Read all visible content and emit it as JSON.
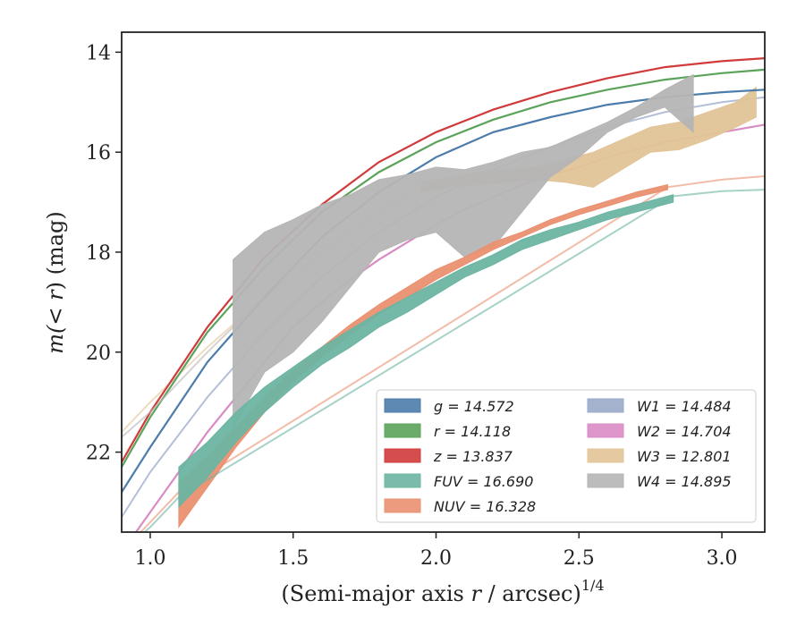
{
  "chart_data": {
    "type": "line",
    "title": "",
    "xlabel": "(Semi-major axis r / arcsec)^1/4",
    "xlabel_parts": {
      "main": "(Semi-major axis ",
      "var": "r",
      "tail": " / arcsec)",
      "sup": "1/4"
    },
    "ylabel": "m(<r) (mag)",
    "ylabel_parts": {
      "open": "m(",
      "var": "< r",
      "close": ") (mag)"
    },
    "xlim": [
      0.9,
      3.15
    ],
    "ylim": [
      23.6,
      13.6
    ],
    "y_inverted": true,
    "xticks": [
      "1.0",
      "1.5",
      "2.0",
      "2.5",
      "3.0"
    ],
    "xtick_values": [
      1.0,
      1.5,
      2.0,
      2.5,
      3.0
    ],
    "yticks": [
      "14",
      "16",
      "18",
      "20",
      "22"
    ],
    "ytick_values": [
      14,
      16,
      18,
      20,
      22
    ],
    "grid": false,
    "legend_position": "lower-right",
    "legend_columns": 2,
    "series": [
      {
        "name": "g = 14.572",
        "color": "#4c7cab",
        "style": "line",
        "x": [
          0.9,
          1.0,
          1.2,
          1.4,
          1.6,
          1.8,
          2.0,
          2.2,
          2.4,
          2.6,
          2.8,
          3.0,
          3.15
        ],
        "y": [
          22.8,
          21.9,
          20.2,
          18.9,
          17.7,
          16.8,
          16.1,
          15.6,
          15.3,
          15.05,
          14.9,
          14.8,
          14.75
        ]
      },
      {
        "name": "r = 14.118",
        "color": "#5ba35b",
        "style": "line",
        "x": [
          0.9,
          1.0,
          1.2,
          1.4,
          1.6,
          1.8,
          2.0,
          2.2,
          2.4,
          2.6,
          2.8,
          3.0,
          3.15
        ],
        "y": [
          22.3,
          21.3,
          19.6,
          18.3,
          17.2,
          16.4,
          15.8,
          15.35,
          15.0,
          14.75,
          14.55,
          14.42,
          14.35
        ]
      },
      {
        "name": "z = 13.837",
        "color": "#d13a3a",
        "style": "line",
        "x": [
          0.9,
          1.0,
          1.2,
          1.4,
          1.6,
          1.8,
          2.0,
          2.2,
          2.4,
          2.6,
          2.8,
          3.0,
          3.15
        ],
        "y": [
          22.2,
          21.2,
          19.5,
          18.1,
          17.05,
          16.2,
          15.6,
          15.15,
          14.8,
          14.52,
          14.3,
          14.18,
          14.12
        ]
      },
      {
        "name": "FUV = 16.690",
        "color": "#6db4a2",
        "style": "band",
        "x": [
          1.1,
          1.2,
          1.3,
          1.4,
          1.5,
          1.6,
          1.7,
          1.8,
          1.9,
          2.0,
          2.1,
          2.2,
          2.3,
          2.4,
          2.5,
          2.6,
          2.7,
          2.83
        ],
        "y_upper": [
          22.3,
          21.8,
          21.2,
          20.7,
          20.3,
          19.9,
          19.55,
          19.2,
          18.9,
          18.6,
          18.3,
          18.05,
          17.75,
          17.55,
          17.4,
          17.2,
          17.05,
          16.85
        ],
        "y_lower": [
          23.1,
          22.5,
          21.8,
          21.2,
          20.7,
          20.25,
          19.9,
          19.5,
          19.2,
          18.85,
          18.5,
          18.25,
          17.95,
          17.75,
          17.55,
          17.35,
          17.2,
          17.0
        ],
        "ext_x": [
          0.9,
          1.0,
          1.1,
          2.83,
          3.0,
          3.15
        ],
        "ext_y": [
          24.0,
          23.5,
          22.9,
          16.88,
          16.78,
          16.75
        ]
      },
      {
        "name": "NUV = 16.328",
        "color": "#ea9070",
        "style": "band",
        "x": [
          1.1,
          1.2,
          1.3,
          1.4,
          1.5,
          1.6,
          1.7,
          1.8,
          1.9,
          2.0,
          2.1,
          2.2,
          2.3,
          2.4,
          2.5,
          2.6,
          2.7,
          2.81
        ],
        "y_upper": [
          22.6,
          22.1,
          21.5,
          20.9,
          20.35,
          19.9,
          19.45,
          19.05,
          18.7,
          18.35,
          18.1,
          17.8,
          17.6,
          17.35,
          17.15,
          16.98,
          16.8,
          16.65
        ],
        "y_lower": [
          23.5,
          22.7,
          21.9,
          21.2,
          20.6,
          20.1,
          19.65,
          19.25,
          18.9,
          18.55,
          18.25,
          17.95,
          17.7,
          17.45,
          17.25,
          17.08,
          16.9,
          16.75
        ],
        "ext_x": [
          0.9,
          1.0,
          1.1,
          2.81,
          3.0,
          3.15
        ],
        "ext_y": [
          24.0,
          23.4,
          22.8,
          16.7,
          16.55,
          16.48
        ]
      },
      {
        "name": "W1 = 14.484",
        "color": "#9aaac9",
        "style": "faint",
        "x": [
          0.9,
          1.0,
          1.2,
          1.4,
          1.6,
          1.8,
          2.0,
          2.2,
          2.4,
          2.6,
          2.8,
          3.0,
          3.15
        ],
        "y": [
          23.3,
          22.4,
          20.9,
          19.6,
          18.5,
          17.6,
          16.9,
          16.35,
          15.9,
          15.5,
          15.2,
          15.0,
          14.9
        ]
      },
      {
        "name": "W2 = 14.704",
        "color": "#d98bc4",
        "style": "line",
        "x": [
          0.9,
          1.0,
          1.1,
          1.2,
          1.3,
          1.4,
          1.5,
          1.6,
          1.7,
          1.8,
          1.9,
          2.0,
          2.1,
          2.2,
          2.3,
          2.4,
          2.5,
          2.6,
          2.7,
          2.8,
          2.9,
          3.0,
          3.15
        ],
        "y": [
          24.0,
          23.2,
          22.4,
          21.6,
          20.9,
          20.2,
          19.5,
          19.0,
          18.55,
          18.15,
          17.8,
          17.45,
          17.15,
          16.9,
          16.65,
          16.45,
          16.3,
          16.1,
          15.95,
          15.8,
          15.7,
          15.6,
          15.45
        ]
      },
      {
        "name": "W3 = 12.801",
        "color": "#e2c497",
        "style": "band",
        "x": [
          1.95,
          2.05,
          2.15,
          2.25,
          2.35,
          2.45,
          2.55,
          2.65,
          2.75,
          2.85,
          2.95,
          3.05,
          3.12
        ],
        "y_upper": [
          16.6,
          16.5,
          16.4,
          16.35,
          16.3,
          16.15,
          16.0,
          15.75,
          15.5,
          15.4,
          15.2,
          15.0,
          14.7
        ],
        "y_lower": [
          16.8,
          16.7,
          16.65,
          16.6,
          16.55,
          16.6,
          16.7,
          16.35,
          16.0,
          15.95,
          15.75,
          15.5,
          15.3
        ],
        "ext_x": [
          0.9,
          1.0,
          1.2,
          1.4,
          1.6,
          1.8,
          1.95
        ],
        "ext_y": [
          21.6,
          21.0,
          19.9,
          18.9,
          18.0,
          17.2,
          16.7
        ]
      },
      {
        "name": "W4 = 14.895",
        "color": "#b5b5b5",
        "style": "band",
        "x": [
          1.29,
          1.4,
          1.5,
          1.6,
          1.7,
          1.8,
          1.9,
          2.0,
          2.1,
          2.2,
          2.3,
          2.4,
          2.5,
          2.6,
          2.7,
          2.8,
          2.9
        ],
        "y_upper": [
          18.15,
          17.6,
          17.35,
          17.05,
          16.85,
          16.55,
          16.45,
          16.3,
          16.35,
          16.2,
          16.0,
          15.9,
          15.65,
          15.4,
          15.1,
          14.75,
          14.45
        ],
        "y_lower": [
          21.5,
          20.4,
          20.0,
          19.4,
          18.7,
          18.0,
          17.75,
          17.6,
          18.1,
          17.9,
          17.2,
          16.5,
          16.1,
          15.6,
          15.3,
          15.1,
          15.6
        ],
        "ext_x": [
          0.9,
          1.0,
          1.1,
          1.2,
          1.29
        ],
        "ext_y": [
          21.7,
          21.2,
          20.6,
          20.0,
          19.5
        ]
      }
    ]
  }
}
